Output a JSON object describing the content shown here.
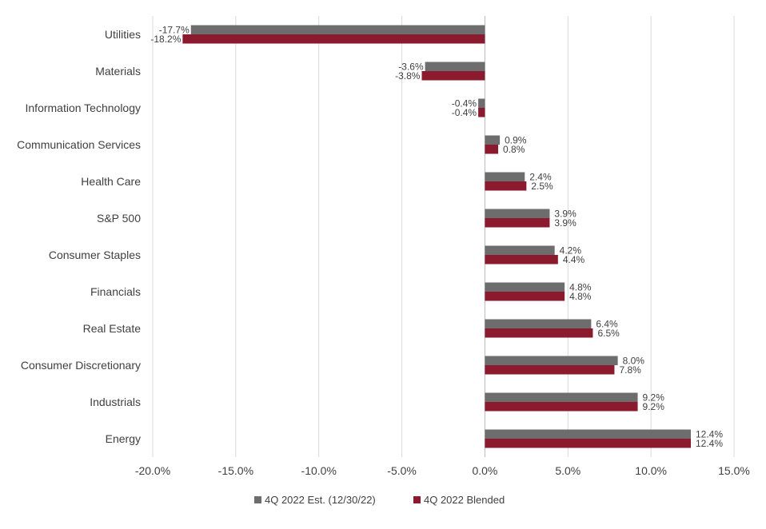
{
  "chart_data": {
    "type": "bar",
    "orientation": "horizontal",
    "categories": [
      "Utilities",
      "Materials",
      "Information Technology",
      "Communication Services",
      "Health Care",
      "S&P 500",
      "Consumer Staples",
      "Financials",
      "Real Estate",
      "Consumer Discretionary",
      "Industrials",
      "Energy"
    ],
    "series": [
      {
        "name": "4Q 2022 Est. (12/30/22)",
        "color": "#6d6d6d",
        "values": [
          -17.7,
          -3.6,
          -0.4,
          0.9,
          2.4,
          3.9,
          4.2,
          4.8,
          6.4,
          8.0,
          9.2,
          12.4
        ],
        "labels": [
          "-17.7%",
          "-3.6%",
          "-0.4%",
          "0.9%",
          "2.4%",
          "3.9%",
          "4.2%",
          "4.8%",
          "6.4%",
          "8.0%",
          "9.2%",
          "12.4%"
        ]
      },
      {
        "name": "4Q 2022 Blended",
        "color": "#8b1a2e",
        "values": [
          -18.2,
          -3.8,
          -0.4,
          0.8,
          2.5,
          3.9,
          4.4,
          4.8,
          6.5,
          7.8,
          9.2,
          12.4
        ],
        "labels": [
          "-18.2%",
          "-3.8%",
          "-0.4%",
          "0.8%",
          "2.5%",
          "3.9%",
          "4.4%",
          "4.8%",
          "6.5%",
          "7.8%",
          "9.2%",
          "12.4%"
        ]
      }
    ],
    "x_ticks": [
      -20,
      -15,
      -10,
      -5,
      0,
      5,
      10,
      15
    ],
    "x_tick_labels": [
      "-20.0%",
      "-15.0%",
      "-10.0%",
      "-5.0%",
      "0.0%",
      "5.0%",
      "10.0%",
      "15.0%"
    ],
    "xlim": [
      -20,
      15
    ],
    "title": "",
    "xlabel": "",
    "ylabel": "",
    "grid": true,
    "legend_position": "bottom"
  }
}
